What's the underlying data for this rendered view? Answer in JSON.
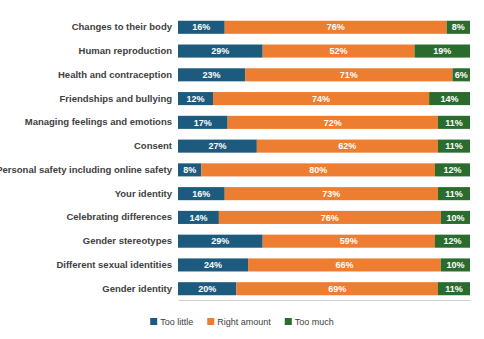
{
  "chart_data": {
    "type": "bar",
    "orientation": "horizontal",
    "stacked": true,
    "data_labels": true,
    "legend": "bottom",
    "tick_labels": "y",
    "categories": [
      "Changes to their body",
      "Human reproduction",
      "Health and contraception",
      "Friendships and bullying",
      "Managing feelings and emotions",
      "Consent",
      "Personal safety including online safety",
      "Your identity",
      "Celebrating differences",
      "Gender stereotypes",
      "Different sexual identities",
      "Gender identity"
    ],
    "xlim": [
      0,
      100
    ],
    "xticks": [],
    "series": [
      {
        "name": "Too little",
        "color": "#1d5b7e",
        "values": [
          16,
          29,
          23,
          12,
          17,
          27,
          8,
          16,
          14,
          29,
          24,
          20
        ],
        "value_labels": [
          "16%",
          "29%",
          "23%",
          "12%",
          "17%",
          "27%",
          "8%",
          "16%",
          "14%",
          "29%",
          "24%",
          "20%"
        ]
      },
      {
        "name": "Right amount",
        "color": "#ed7d31",
        "values": [
          76,
          52,
          71,
          74,
          72,
          62,
          80,
          73,
          76,
          59,
          66,
          69
        ],
        "value_labels": [
          "76%",
          "52%",
          "71%",
          "74%",
          "72%",
          "62%",
          "80%",
          "73%",
          "76%",
          "59%",
          "66%",
          "69%"
        ]
      },
      {
        "name": "Too much",
        "color": "#2a6b2e",
        "values": [
          8,
          19,
          6,
          14,
          11,
          11,
          12,
          11,
          10,
          12,
          10,
          11
        ],
        "value_labels": [
          "8%",
          "19%",
          "6%",
          "14%",
          "11%",
          "11%",
          "12%",
          "11%",
          "10%",
          "12%",
          "10%",
          "11%"
        ]
      }
    ]
  }
}
